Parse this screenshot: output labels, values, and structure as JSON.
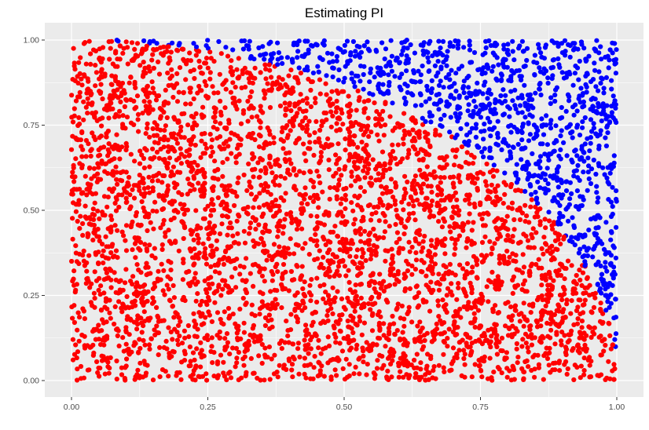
{
  "chart_data": {
    "type": "scatter",
    "title": "Estimating PI",
    "xlabel": "",
    "ylabel": "",
    "xlim": [
      0,
      1
    ],
    "ylim": [
      0,
      1
    ],
    "xticks": [
      {
        "value": 0.0,
        "label": "0.00"
      },
      {
        "value": 0.25,
        "label": "0.25"
      },
      {
        "value": 0.5,
        "label": "0.50"
      },
      {
        "value": 0.75,
        "label": "0.75"
      },
      {
        "value": 1.0,
        "label": "1.00"
      }
    ],
    "yticks": [
      {
        "value": 0.0,
        "label": "0.00"
      },
      {
        "value": 0.25,
        "label": "0.25"
      },
      {
        "value": 0.5,
        "label": "0.50"
      },
      {
        "value": 0.75,
        "label": "0.75"
      },
      {
        "value": 1.0,
        "label": "1.00"
      }
    ],
    "grid": true,
    "legend": "none",
    "background_color": "#EBEBEB",
    "grid_color": "#FFFFFF",
    "sampling": {
      "distribution": "uniform",
      "n_points": 5000,
      "inside_condition": "x^2 + y^2 <= 1"
    },
    "series": [
      {
        "color": "#FF0000",
        "region": "inside"
      },
      {
        "color": "#0000FF",
        "region": "outside"
      }
    ]
  }
}
